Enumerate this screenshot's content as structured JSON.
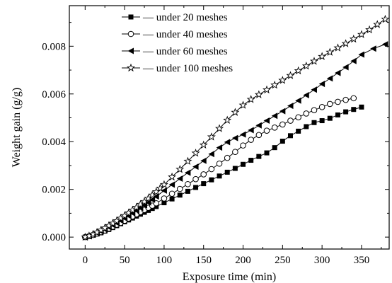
{
  "chart_data": {
    "type": "line",
    "title": "",
    "xlabel": "Exposure time (min)",
    "ylabel": "Weight  gain (g/g)",
    "xlim": [
      -20,
      385
    ],
    "ylim": [
      -0.0005,
      0.0097
    ],
    "xticks": [
      0,
      50,
      100,
      150,
      200,
      250,
      300,
      350
    ],
    "xtick_labels": [
      "0",
      "50",
      "100",
      "150",
      "200",
      "250",
      "300",
      "350"
    ],
    "yticks": [
      0.0,
      0.002,
      0.004,
      0.006,
      0.008
    ],
    "ytick_labels": [
      "0.000",
      "0.002",
      "0.004",
      "0.006",
      "0.008"
    ],
    "legend_position": "top-left",
    "grid": false,
    "series": [
      {
        "name": "under 20 meshes",
        "marker": "filled-square",
        "x": [
          0,
          5,
          10,
          15,
          20,
          25,
          30,
          35,
          40,
          45,
          50,
          55,
          60,
          65,
          70,
          75,
          80,
          85,
          90,
          100,
          110,
          120,
          130,
          140,
          150,
          160,
          170,
          180,
          190,
          200,
          210,
          220,
          230,
          240,
          250,
          260,
          270,
          280,
          290,
          300,
          310,
          320,
          330,
          340,
          350
        ],
        "y": [
          0.0,
          3e-05,
          8e-05,
          0.00013,
          0.00018,
          0.00025,
          0.00032,
          0.0004,
          0.00048,
          0.00056,
          0.00064,
          0.00072,
          0.0008,
          0.00088,
          0.00096,
          0.00104,
          0.00112,
          0.0012,
          0.00128,
          0.00144,
          0.0016,
          0.00176,
          0.00192,
          0.00208,
          0.00224,
          0.0024,
          0.00256,
          0.00272,
          0.00288,
          0.00305,
          0.00322,
          0.00338,
          0.00353,
          0.00375,
          0.00402,
          0.00425,
          0.00444,
          0.00463,
          0.0048,
          0.00488,
          0.00498,
          0.00512,
          0.00525,
          0.00535,
          0.00545
        ]
      },
      {
        "name": "under 40 meshes",
        "marker": "open-circle",
        "x": [
          0,
          5,
          10,
          15,
          20,
          25,
          30,
          35,
          40,
          45,
          50,
          55,
          60,
          65,
          70,
          75,
          80,
          85,
          90,
          100,
          110,
          120,
          130,
          140,
          150,
          160,
          170,
          180,
          190,
          200,
          210,
          220,
          230,
          240,
          250,
          260,
          270,
          280,
          290,
          300,
          310,
          320,
          330,
          340
        ],
        "y": [
          0.0,
          4e-05,
          9e-05,
          0.00015,
          0.00021,
          0.00028,
          0.00036,
          0.00044,
          0.00052,
          0.0006,
          0.00069,
          0.00078,
          0.00087,
          0.00096,
          0.00105,
          0.00114,
          0.00123,
          0.00132,
          0.00142,
          0.00162,
          0.00182,
          0.00202,
          0.00222,
          0.00243,
          0.00263,
          0.00285,
          0.00308,
          0.00332,
          0.00357,
          0.00384,
          0.00408,
          0.00428,
          0.00446,
          0.00459,
          0.00472,
          0.00488,
          0.00502,
          0.00518,
          0.00532,
          0.00545,
          0.00558,
          0.00567,
          0.00575,
          0.00582
        ]
      },
      {
        "name": "under 60 meshes",
        "marker": "filled-triangle-left",
        "x": [
          0,
          5,
          10,
          15,
          20,
          25,
          30,
          35,
          40,
          45,
          50,
          55,
          60,
          65,
          70,
          75,
          80,
          85,
          90,
          100,
          110,
          120,
          130,
          140,
          150,
          160,
          170,
          180,
          190,
          200,
          210,
          220,
          230,
          240,
          250,
          260,
          270,
          280,
          290,
          300,
          310,
          320,
          330,
          340,
          350,
          365,
          380
        ],
        "y": [
          0.0,
          4e-05,
          0.0001,
          0.00017,
          0.00024,
          0.00032,
          0.00041,
          0.0005,
          0.00059,
          0.00069,
          0.00079,
          0.00089,
          0.001,
          0.00111,
          0.00122,
          0.00133,
          0.00145,
          0.00157,
          0.0017,
          0.00195,
          0.0022,
          0.00245,
          0.0027,
          0.00295,
          0.0032,
          0.00348,
          0.00375,
          0.00398,
          0.00415,
          0.0043,
          0.00448,
          0.00468,
          0.00488,
          0.00508,
          0.00528,
          0.0055,
          0.00572,
          0.00595,
          0.00618,
          0.00642,
          0.00665,
          0.00688,
          0.00712,
          0.00738,
          0.00765,
          0.0079,
          0.00808
        ]
      },
      {
        "name": "under 100 meshes",
        "marker": "open-star",
        "x": [
          0,
          5,
          10,
          15,
          20,
          25,
          30,
          35,
          40,
          45,
          50,
          55,
          60,
          65,
          70,
          75,
          80,
          85,
          90,
          95,
          100,
          110,
          120,
          130,
          140,
          150,
          160,
          170,
          180,
          190,
          200,
          210,
          220,
          230,
          240,
          250,
          260,
          270,
          280,
          290,
          300,
          310,
          320,
          330,
          340,
          350,
          360,
          370,
          380
        ],
        "y": [
          0.0,
          5e-05,
          0.00012,
          0.0002,
          0.00029,
          0.00038,
          0.00048,
          0.00058,
          0.00068,
          0.00079,
          0.0009,
          0.00101,
          0.00113,
          0.00125,
          0.00137,
          0.00149,
          0.00162,
          0.00176,
          0.0019,
          0.00205,
          0.0022,
          0.00252,
          0.00284,
          0.00318,
          0.00352,
          0.00386,
          0.0042,
          0.00455,
          0.0049,
          0.00523,
          0.00553,
          0.00577,
          0.00597,
          0.00617,
          0.00637,
          0.00657,
          0.00677,
          0.00697,
          0.00717,
          0.00737,
          0.00757,
          0.00775,
          0.00793,
          0.00811,
          0.0083,
          0.00849,
          0.00869,
          0.00891,
          0.00913
        ]
      }
    ]
  }
}
